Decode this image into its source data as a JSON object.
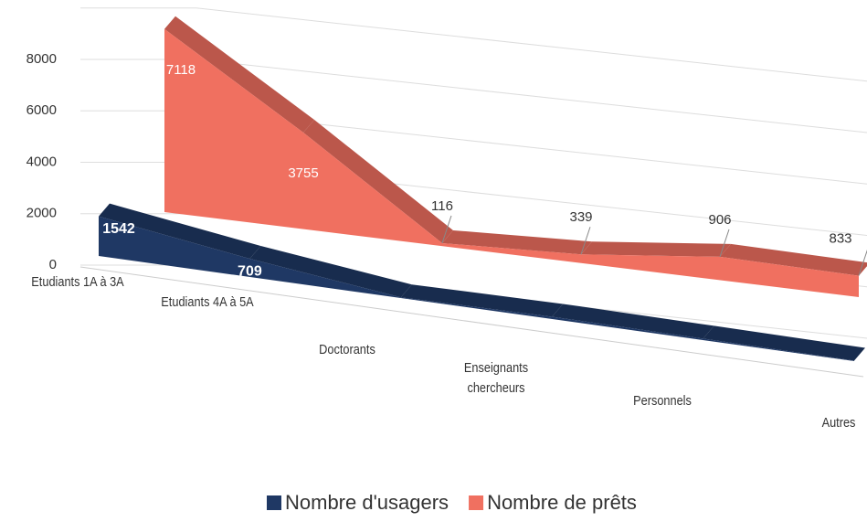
{
  "chart_data": {
    "type": "area3d",
    "categories": [
      "Etudiants 1A à 3A",
      "Etudiants 4A à 5A",
      "Doctorants",
      "Enseignants chercheurs",
      "Personnels",
      "Autres"
    ],
    "series": [
      {
        "name": "Nombre d'usagers",
        "color": "#1f3864",
        "values": [
          1542,
          709,
          28,
          91,
          56,
          17
        ]
      },
      {
        "name": "Nombre de prêts",
        "color": "#f07060",
        "values": [
          7118,
          3755,
          116,
          339,
          906,
          833
        ]
      }
    ],
    "ylim": [
      0,
      10000
    ],
    "yticks": [
      0,
      2000,
      4000,
      6000,
      8000
    ],
    "grid": true,
    "legend": "bottom"
  }
}
